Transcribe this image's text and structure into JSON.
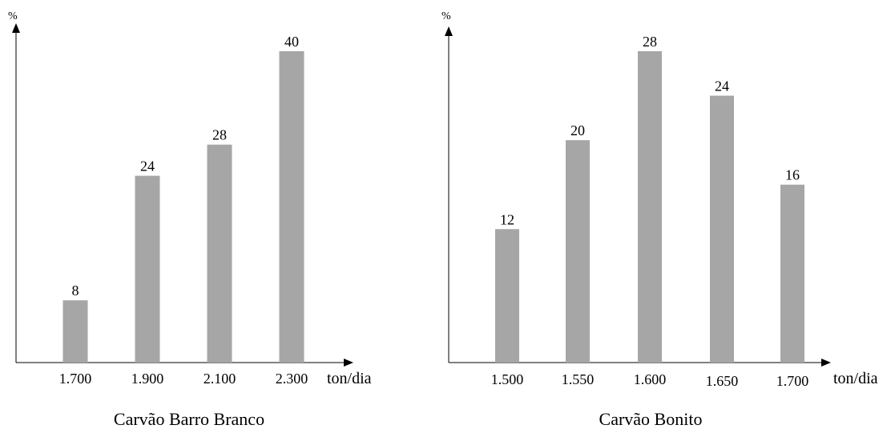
{
  "chart_data": [
    {
      "type": "bar",
      "title": "Carvão Barro Branco",
      "xlabel": "ton/dia",
      "ylabel": "%",
      "categories": [
        "1.700",
        "1.900",
        "2.100",
        "2.300"
      ],
      "values": [
        8,
        24,
        28,
        40
      ],
      "ylim": [
        0,
        40
      ],
      "grid": false
    },
    {
      "type": "bar",
      "title": "Carvão Bonito",
      "xlabel": "ton/dia",
      "ylabel": "%",
      "categories": [
        "1.500",
        "1.550",
        "1.600",
        "1.650",
        "1.700"
      ],
      "values": [
        12,
        20,
        28,
        24,
        16
      ],
      "ylim": [
        0,
        28
      ],
      "grid": false
    }
  ],
  "colors": {
    "bar": "#a6a6a6",
    "axis": "#000000"
  }
}
